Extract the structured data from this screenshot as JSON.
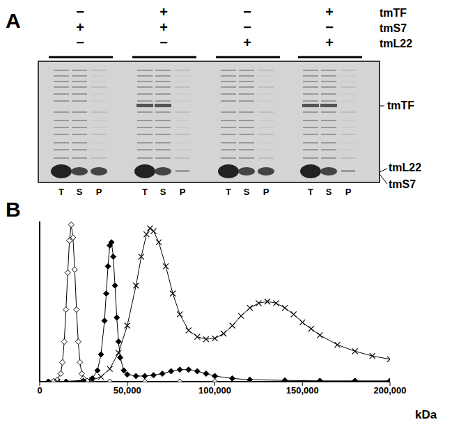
{
  "gel": {
    "label": "A",
    "rows": [
      {
        "label": "tmTF",
        "signs": [
          "−",
          "+",
          "−",
          "+"
        ]
      },
      {
        "label": "tmS7",
        "signs": [
          "+",
          "+",
          "−",
          "−"
        ]
      },
      {
        "label": "tmL22",
        "signs": [
          "−",
          "−",
          "+",
          "+"
        ]
      }
    ],
    "lane_labels": [
      "T",
      "S",
      "P"
    ],
    "band_labels": [
      "tmTF",
      "tmL22",
      "tmS7"
    ]
  },
  "chart_data": {
    "type": "line",
    "title": "B",
    "x_label": "kDa",
    "xlim": [
      0,
      200000
    ],
    "xticks": [
      0,
      {
        "value": 50000,
        "label": "50,000"
      },
      {
        "value": 100000,
        "label": "100,000"
      },
      {
        "value": 150000,
        "label": "150,000"
      },
      {
        "value": 200000,
        "label": "200,000"
      }
    ],
    "ylim": [
      0,
      1
    ],
    "yticks": [],
    "tick_labels": "x",
    "series": [
      {
        "color": "#000000",
        "marker": "open_diamond",
        "x": [
          5000,
          8000,
          10000,
          12000,
          13000,
          14000,
          15000,
          16000,
          17000,
          18000,
          19000,
          20000,
          21000,
          22000,
          23000,
          24000,
          25000,
          27000,
          30000,
          40000,
          60000,
          80000,
          100000,
          120000,
          140000,
          160000,
          180000,
          200000
        ],
        "values": [
          0,
          0.003,
          0.01,
          0.05,
          0.12,
          0.25,
          0.45,
          0.68,
          0.88,
          0.98,
          0.9,
          0.7,
          0.45,
          0.25,
          0.12,
          0.05,
          0.02,
          0.005,
          0,
          0,
          0,
          0,
          0,
          0,
          0,
          0,
          0,
          0
        ]
      },
      {
        "color": "#000000",
        "marker": "diamond",
        "x": [
          5000,
          15000,
          25000,
          30000,
          33000,
          35000,
          37000,
          38000,
          39000,
          40000,
          41000,
          42000,
          43000,
          44000,
          45000,
          46000,
          48000,
          50000,
          55000,
          60000,
          65000,
          70000,
          75000,
          80000,
          85000,
          90000,
          95000,
          100000,
          110000,
          120000,
          140000,
          160000,
          180000,
          200000
        ],
        "values": [
          0,
          0,
          0.005,
          0.02,
          0.07,
          0.17,
          0.38,
          0.55,
          0.72,
          0.85,
          0.87,
          0.78,
          0.6,
          0.4,
          0.25,
          0.15,
          0.07,
          0.045,
          0.035,
          0.035,
          0.04,
          0.05,
          0.065,
          0.075,
          0.075,
          0.065,
          0.05,
          0.035,
          0.02,
          0.012,
          0.008,
          0.005,
          0.005,
          0.005
        ]
      },
      {
        "color": "#000000",
        "marker": "x",
        "x": [
          10000,
          30000,
          35000,
          40000,
          45000,
          50000,
          55000,
          58000,
          61000,
          63000,
          65000,
          68000,
          72000,
          76000,
          80000,
          85000,
          90000,
          95000,
          100000,
          105000,
          110000,
          115000,
          120000,
          125000,
          130000,
          135000,
          140000,
          145000,
          150000,
          155000,
          160000,
          170000,
          180000,
          190000,
          200000
        ],
        "values": [
          0,
          0.01,
          0.03,
          0.08,
          0.18,
          0.35,
          0.6,
          0.78,
          0.92,
          0.957,
          0.94,
          0.87,
          0.72,
          0.55,
          0.42,
          0.32,
          0.28,
          0.265,
          0.27,
          0.3,
          0.35,
          0.41,
          0.46,
          0.49,
          0.5,
          0.49,
          0.46,
          0.42,
          0.37,
          0.33,
          0.29,
          0.23,
          0.19,
          0.16,
          0.14
        ]
      }
    ]
  }
}
